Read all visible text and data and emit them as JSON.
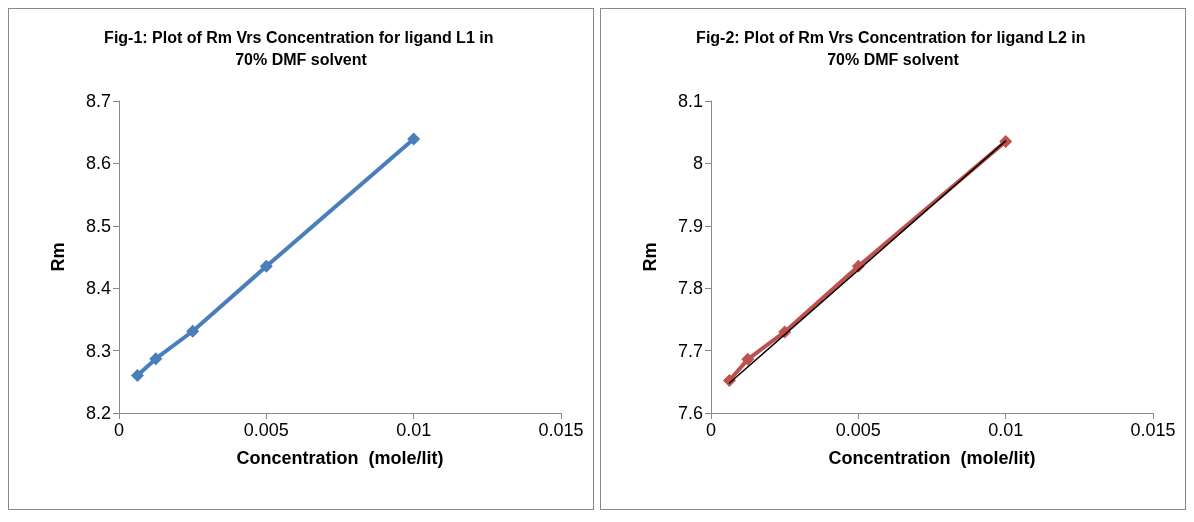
{
  "chart_data": [
    {
      "type": "line",
      "title": "Fig-1: Plot of Rm Vrs Concentration for ligand L1 in 70% DMF solvent",
      "xlabel": "Concentration  (mole/lit)",
      "ylabel": "Rm",
      "x": [
        0.000625,
        0.00125,
        0.0025,
        0.005,
        0.01
      ],
      "series": [
        {
          "color": "#4a7ebb",
          "values": [
            8.26,
            8.287,
            8.331,
            8.435,
            8.639
          ]
        }
      ],
      "xlim": [
        0,
        0.015
      ],
      "xticks": [
        0,
        0.005,
        0.01,
        0.015
      ],
      "ylim": [
        8.2,
        8.7
      ],
      "yticks": [
        8.2,
        8.3,
        8.4,
        8.5,
        8.6,
        8.7
      ],
      "grid": false,
      "marker": "diamond",
      "line_style": "solid"
    },
    {
      "type": "line",
      "title": "Fig-2: Plot of Rm Vrs Concentration for ligand L2 in 70% DMF solvent",
      "xlabel": "Concentration  (mole/lit)",
      "ylabel": "Rm",
      "x": [
        0.000625,
        0.00125,
        0.0025,
        0.005,
        0.01
      ],
      "series": [
        {
          "color": "#c0504d",
          "values": [
            7.652,
            7.686,
            7.73,
            7.835,
            8.035
          ]
        },
        {
          "type": "line",
          "color": "#000000",
          "x": [
            0.000625,
            0.01
          ],
          "values": [
            7.648,
            8.036
          ],
          "marker": "none"
        }
      ],
      "xlim": [
        0,
        0.015
      ],
      "xticks": [
        0,
        0.005,
        0.01,
        0.015
      ],
      "ylim": [
        7.6,
        8.1
      ],
      "yticks": [
        7.6,
        7.7,
        7.8,
        7.9,
        8,
        8.1
      ],
      "grid": false,
      "marker": "diamond",
      "line_style": "solid"
    }
  ]
}
